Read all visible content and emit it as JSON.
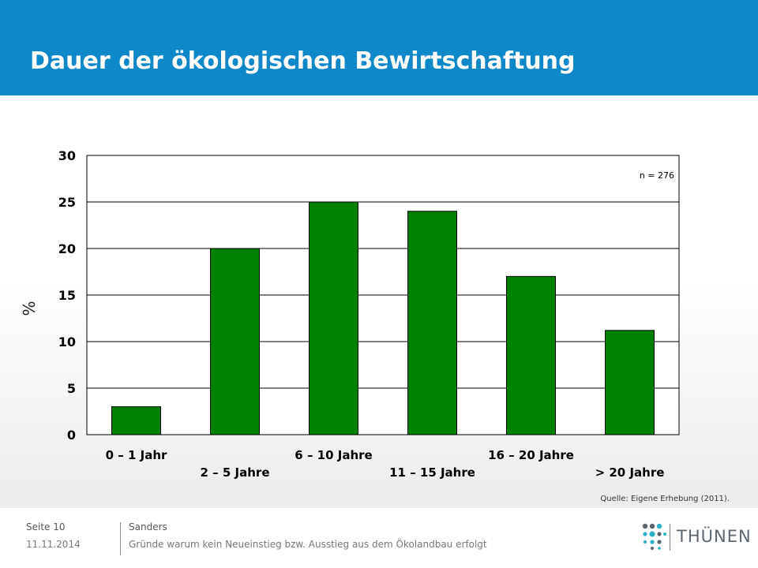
{
  "slide": {
    "title": "Dauer der ökologischen Bewirtschaftung"
  },
  "chart_data": {
    "type": "bar",
    "categories": [
      "0 – 1 Jahr",
      "2 – 5 Jahre",
      "6 – 10 Jahre",
      "11 – 15 Jahre",
      "16 – 20 Jahre",
      "> 20 Jahre"
    ],
    "values": [
      3,
      20,
      25,
      24,
      17,
      11.2
    ],
    "ylabel": "%",
    "ylim": [
      0,
      30
    ],
    "yticks": [
      0,
      5,
      10,
      15,
      20,
      25,
      30
    ],
    "annotation": "n = 276",
    "source": "Quelle: Eigene Erhebung (2011).",
    "bar_color": "#008000",
    "grid": true
  },
  "footer": {
    "page": "Seite 10",
    "date": "11.11.2014",
    "author": "Sanders",
    "description": "Gründe warum kein Neueinstieg bzw. Ausstieg aus dem Ökolandbau erfolgt"
  },
  "logo": {
    "text": "THÜNEN",
    "dot_color_dark": "#5c6670",
    "dot_color_accent": "#2bb0c6"
  },
  "colors": {
    "header_bg": "#0e88c9",
    "bar": "#008000"
  }
}
